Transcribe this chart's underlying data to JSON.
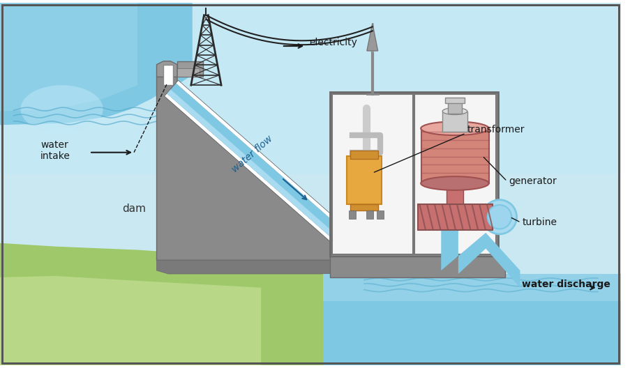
{
  "sky_top": "#c5e8f5",
  "sky_bottom": "#daf0f8",
  "water_blue": "#7ec8e3",
  "water_light": "#a8daf0",
  "water_mid": "#9dd5ee",
  "dam_gray": "#8a8a8a",
  "dam_mid": "#7a7a7a",
  "dam_dark": "#6a6a6a",
  "grass_green": "#9ec86a",
  "grass_light": "#b8d888",
  "white": "#ffffff",
  "off_white": "#f5f5f5",
  "gen_pink": "#d4857a",
  "gen_light": "#e8a8a0",
  "trans_orange": "#e8a840",
  "trans_light": "#f0c070",
  "turbine_pink": "#c87070",
  "border": "#555555",
  "black": "#1a1a1a",
  "cable_color": "#222222",
  "tower_color": "#2a2a2a",
  "label_blue": "#1a6090",
  "labels": {
    "water_intake": "water\nintake",
    "dam": "dam",
    "water_flow": "water flow",
    "transformer": "transformer",
    "generator": "generator",
    "turbine": "turbine",
    "water_discharge": "water discharge",
    "electricity": "electricity"
  }
}
